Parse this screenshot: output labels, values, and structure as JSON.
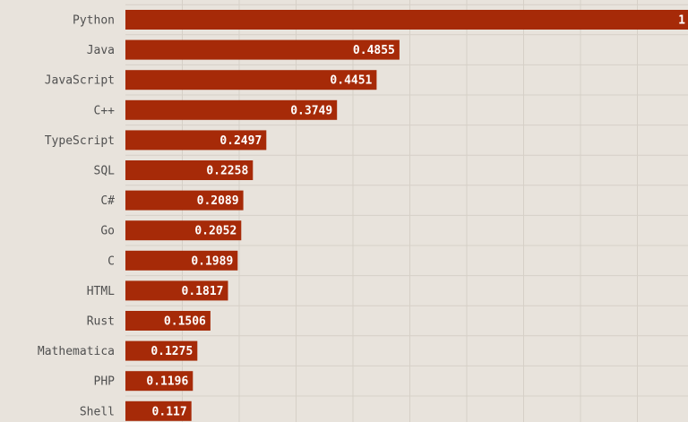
{
  "chart_data": {
    "type": "bar",
    "orientation": "horizontal",
    "title": "",
    "xlabel": "",
    "ylabel": "",
    "categories": [
      "Python",
      "Java",
      "JavaScript",
      "C++",
      "TypeScript",
      "SQL",
      "C#",
      "Go",
      "C",
      "HTML",
      "Rust",
      "Mathematica",
      "PHP",
      "Shell"
    ],
    "values": [
      1,
      0.4855,
      0.4451,
      0.3749,
      0.2497,
      0.2258,
      0.2089,
      0.2052,
      0.1989,
      0.1817,
      0.1506,
      0.1275,
      0.1196,
      0.117
    ],
    "value_labels": [
      "1",
      "0.4855",
      "0.4451",
      "0.3749",
      "0.2497",
      "0.2258",
      "0.2089",
      "0.2052",
      "0.1989",
      "0.1817",
      "0.1506",
      "0.1275",
      "0.1196",
      "0.117"
    ],
    "xlim": [
      0,
      1
    ],
    "grid": true,
    "legend": "none",
    "colors": {
      "background": "#e8e3dc",
      "bar": "#a62a08",
      "grid": "#d6d0c7",
      "category_text": "#505050",
      "value_text": "#ffffff"
    }
  }
}
